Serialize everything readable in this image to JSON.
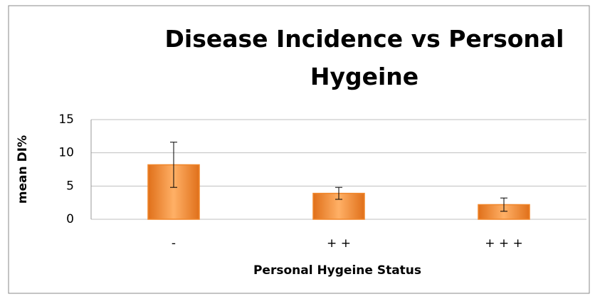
{
  "chart_data": {
    "type": "bar",
    "title": "Disease Incidence vs Personal Hygeine",
    "categories": [
      "-",
      "+ +",
      "+ + +"
    ],
    "values": [
      8.2,
      3.9,
      2.2
    ],
    "errors": [
      3.4,
      0.9,
      1.0
    ],
    "color": "#f0862a",
    "x_label": "Personal Hygeine Status",
    "y_label": "mean DI%",
    "ylim": [
      0,
      15
    ],
    "yticks": [
      0,
      5,
      10,
      15
    ],
    "grid": true
  }
}
